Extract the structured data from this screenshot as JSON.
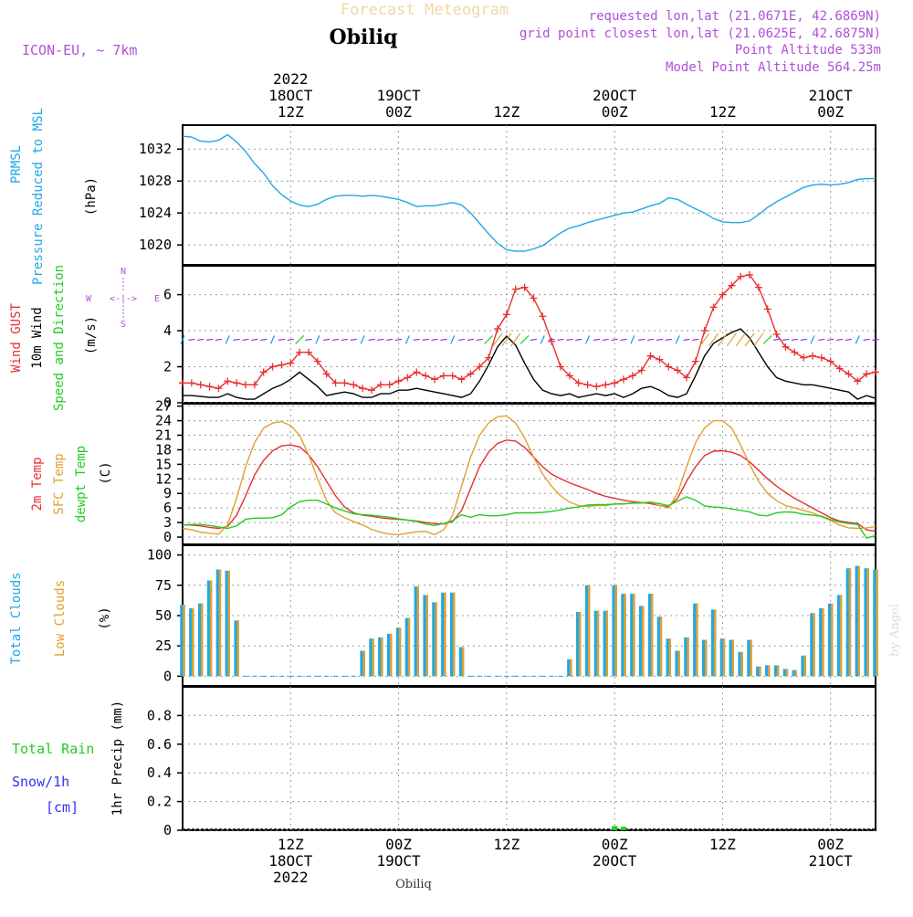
{
  "header": {
    "title_faded": "Forecast Meteogram",
    "location": "Obiliq",
    "model": "ICON-EU, ~ 7km",
    "requested": "requested lon,lat (21.0671E, 42.6869N)",
    "grid_point": "grid point closest lon,lat (21.0625E, 42.6875N)",
    "point_altitude": "Point Altitude 533m",
    "model_altitude": "Model Point Altitude 564.25m",
    "watermark": "by Angel",
    "footer_location": "Obiliq"
  },
  "time_axis": {
    "top_year": "2022",
    "ticks": [
      {
        "h": 12,
        "l1": "12Z",
        "l2": "18OCT",
        "l3": "2022"
      },
      {
        "h": 24,
        "l1": "00Z",
        "l2": "19OCT",
        "l3": ""
      },
      {
        "h": 36,
        "l1": "12Z",
        "l2": "",
        "l3": ""
      },
      {
        "h": 48,
        "l1": "00Z",
        "l2": "20OCT",
        "l3": ""
      },
      {
        "h": 60,
        "l1": "12Z",
        "l2": "",
        "l3": ""
      },
      {
        "h": 72,
        "l1": "00Z",
        "l2": "21OCT",
        "l3": ""
      }
    ],
    "start_hour": 0,
    "end_hour": 77
  },
  "colors": {
    "pressure": "#1ea8e8",
    "gust": "#e83030",
    "wind": "#000000",
    "temp2m": "#e83030",
    "sfc": "#e0a030",
    "dewpt": "#22cc22",
    "total_clouds": "#1ea8e8",
    "low_clouds": "#e0a030",
    "rain": "#22cc22",
    "snow": "#3333ee",
    "purple": "#b050d8",
    "grid": "#999999"
  },
  "chart_data": [
    {
      "type": "line",
      "panel": "pressure",
      "labels": [
        "PRMSL",
        "Pressure Reduced to MSL"
      ],
      "unit": "(hPa)",
      "ylim": [
        1017.5,
        1035
      ],
      "yticks": [
        1020,
        1024,
        1028,
        1032
      ],
      "x": [
        0,
        1,
        2,
        3,
        4,
        5,
        6,
        7,
        8,
        9,
        10,
        11,
        12,
        13,
        14,
        15,
        16,
        17,
        18,
        19,
        20,
        21,
        22,
        23,
        24,
        25,
        26,
        27,
        28,
        29,
        30,
        31,
        32,
        33,
        34,
        35,
        36,
        37,
        38,
        39,
        40,
        41,
        42,
        43,
        44,
        45,
        46,
        47,
        48,
        49,
        50,
        51,
        52,
        53,
        54,
        55,
        56,
        57,
        58,
        59,
        60,
        61,
        62,
        63,
        64,
        65,
        66,
        67,
        68,
        69,
        70,
        71,
        72,
        73,
        74,
        75,
        76,
        77
      ],
      "series": [
        {
          "name": "PRMSL",
          "values": [
            1033.6,
            1033.5,
            1033,
            1032.9,
            1033.1,
            1033.8,
            1032.9,
            1031.7,
            1030.2,
            1029,
            1027.4,
            1026.3,
            1025.5,
            1025,
            1024.8,
            1025.1,
            1025.7,
            1026.1,
            1026.2,
            1026.2,
            1026.1,
            1026.2,
            1026.1,
            1025.9,
            1025.7,
            1025.3,
            1024.8,
            1024.9,
            1024.9,
            1025.1,
            1025.3,
            1025,
            1024,
            1022.7,
            1021.4,
            1020.2,
            1019.4,
            1019.2,
            1019.2,
            1019.5,
            1019.9,
            1020.7,
            1021.5,
            1022.1,
            1022.4,
            1022.8,
            1023.1,
            1023.4,
            1023.7,
            1024,
            1024.1,
            1024.5,
            1024.9,
            1025.2,
            1025.9,
            1025.7,
            1025.1,
            1024.5,
            1024,
            1023.3,
            1022.9,
            1022.8,
            1022.8,
            1023,
            1023.8,
            1024.7,
            1025.4,
            1026,
            1026.6,
            1027.2,
            1027.5,
            1027.6,
            1027.5,
            1027.6,
            1027.8,
            1028.2,
            1028.3,
            1028.3
          ]
        }
      ]
    },
    {
      "type": "line",
      "panel": "wind",
      "labels": [
        "Wind GUST",
        "10m Wind",
        "Speed and Direction"
      ],
      "unit": "(m/s)",
      "ylim": [
        0,
        7.6
      ],
      "yticks": [
        0,
        2,
        4,
        6
      ],
      "compass": {
        "n": "N",
        "s": "S",
        "w": "W",
        "e": "E",
        "line": "<-|->"
      },
      "x": [
        0,
        1,
        2,
        3,
        4,
        5,
        6,
        7,
        8,
        9,
        10,
        11,
        12,
        13,
        14,
        15,
        16,
        17,
        18,
        19,
        20,
        21,
        22,
        23,
        24,
        25,
        26,
        27,
        28,
        29,
        30,
        31,
        32,
        33,
        34,
        35,
        36,
        37,
        38,
        39,
        40,
        41,
        42,
        43,
        44,
        45,
        46,
        47,
        48,
        49,
        50,
        51,
        52,
        53,
        54,
        55,
        56,
        57,
        58,
        59,
        60,
        61,
        62,
        63,
        64,
        65,
        66,
        67,
        68,
        69,
        70,
        71,
        72,
        73,
        74,
        75,
        76,
        77
      ],
      "series": [
        {
          "name": "Wind GUST",
          "values": [
            1.1,
            1.1,
            1,
            0.9,
            0.8,
            1.2,
            1.1,
            1.0,
            1.0,
            1.7,
            2.0,
            2.1,
            2.2,
            2.8,
            2.8,
            2.3,
            1.6,
            1.1,
            1.1,
            1.0,
            0.8,
            0.7,
            1.0,
            1.0,
            1.2,
            1.4,
            1.7,
            1.5,
            1.3,
            1.5,
            1.5,
            1.3,
            1.6,
            2.0,
            2.5,
            4.1,
            4.9,
            6.3,
            6.4,
            5.8,
            4.8,
            3.4,
            2.0,
            1.5,
            1.1,
            1.0,
            0.9,
            1.0,
            1.1,
            1.3,
            1.5,
            1.8,
            2.6,
            2.4,
            2.0,
            1.8,
            1.4,
            2.3,
            4.0,
            5.3,
            6.0,
            6.5,
            7.0,
            7.1,
            6.4,
            5.2,
            3.8,
            3.1,
            2.8,
            2.5,
            2.6,
            2.5,
            2.3,
            1.9,
            1.6,
            1.2,
            1.6,
            1.7
          ]
        },
        {
          "name": "10m Wind",
          "values": [
            0.4,
            0.4,
            0.35,
            0.3,
            0.3,
            0.5,
            0.3,
            0.2,
            0.2,
            0.5,
            0.8,
            1.0,
            1.3,
            1.7,
            1.3,
            0.9,
            0.4,
            0.5,
            0.6,
            0.5,
            0.3,
            0.3,
            0.5,
            0.5,
            0.7,
            0.7,
            0.8,
            0.7,
            0.6,
            0.5,
            0.4,
            0.3,
            0.5,
            1.2,
            2.1,
            3.1,
            3.7,
            3.2,
            2.2,
            1.3,
            0.7,
            0.5,
            0.4,
            0.5,
            0.3,
            0.4,
            0.5,
            0.4,
            0.5,
            0.3,
            0.5,
            0.8,
            0.9,
            0.7,
            0.4,
            0.3,
            0.5,
            1.5,
            2.6,
            3.3,
            3.6,
            3.9,
            4.1,
            3.6,
            2.8,
            2.0,
            1.4,
            1.2,
            1.1,
            1.0,
            1.0,
            0.9,
            0.8,
            0.7,
            0.6,
            0.2,
            0.4,
            0.25
          ]
        }
      ]
    },
    {
      "type": "line",
      "panel": "temperature",
      "labels": [
        "2m Temp",
        "SFC Temp",
        "dewpt Temp"
      ],
      "unit": "(C)",
      "ylim": [
        -1.5,
        27.5
      ],
      "yticks": [
        0,
        3,
        6,
        9,
        12,
        15,
        18,
        21,
        24,
        27
      ],
      "x": [
        0,
        1,
        2,
        3,
        4,
        5,
        6,
        7,
        8,
        9,
        10,
        11,
        12,
        13,
        14,
        15,
        16,
        17,
        18,
        19,
        20,
        21,
        22,
        23,
        24,
        25,
        26,
        27,
        28,
        29,
        30,
        31,
        32,
        33,
        34,
        35,
        36,
        37,
        38,
        39,
        40,
        41,
        42,
        43,
        44,
        45,
        46,
        47,
        48,
        49,
        50,
        51,
        52,
        53,
        54,
        55,
        56,
        57,
        58,
        59,
        60,
        61,
        62,
        63,
        64,
        65,
        66,
        67,
        68,
        69,
        70,
        71,
        72,
        73,
        74,
        75,
        76,
        77
      ],
      "series": [
        {
          "name": "2m Temp",
          "values": [
            2.5,
            2.5,
            2.3,
            2.0,
            1.8,
            2.2,
            4.5,
            8.5,
            12.8,
            15.8,
            17.8,
            18.8,
            19.0,
            18.6,
            17.0,
            14.5,
            11.5,
            8.5,
            6.2,
            5.0,
            4.5,
            4.3,
            4.0,
            3.8,
            3.7,
            3.5,
            3.3,
            3.0,
            2.8,
            2.7,
            3.2,
            5.5,
            10.0,
            14.5,
            17.5,
            19.3,
            20.0,
            19.8,
            18.5,
            16.5,
            14.5,
            13.0,
            12.0,
            11.2,
            10.5,
            9.8,
            9.0,
            8.4,
            8.0,
            7.6,
            7.3,
            7.1,
            6.9,
            6.5,
            6.2,
            8.0,
            11.5,
            14.5,
            16.8,
            17.7,
            17.8,
            17.5,
            16.8,
            15.5,
            13.8,
            12.0,
            10.5,
            9.2,
            8.0,
            7.0,
            6.0,
            5.0,
            4.0,
            3.3,
            3.0,
            2.8,
            1.5,
            1.2
          ]
        },
        {
          "name": "SFC Temp",
          "values": [
            1.8,
            1.5,
            1.0,
            0.8,
            0.6,
            2.5,
            8.0,
            14.5,
            19.5,
            22.5,
            23.5,
            23.8,
            23.0,
            21.0,
            17.0,
            12.0,
            7.5,
            5.0,
            4.0,
            3.2,
            2.5,
            1.6,
            1.0,
            0.6,
            0.5,
            0.8,
            1.1,
            1.2,
            0.5,
            1.5,
            4.5,
            10.5,
            16.5,
            21.0,
            23.5,
            24.8,
            25.0,
            23.5,
            20.5,
            16.5,
            13.0,
            10.5,
            8.5,
            7.2,
            6.5,
            6.3,
            6.5,
            6.5,
            6.8,
            6.8,
            7.0,
            7.0,
            7.2,
            6.5,
            6.0,
            9.0,
            14.5,
            19.5,
            22.5,
            24.0,
            24.0,
            22.5,
            19.0,
            15.0,
            11.5,
            9.0,
            7.5,
            6.5,
            6.0,
            5.5,
            5.0,
            4.2,
            3.4,
            2.5,
            1.9,
            1.8,
            1.9,
            2.2
          ]
        },
        {
          "name": "dewpt Temp",
          "values": [
            2.5,
            2.6,
            2.6,
            2.4,
            2.1,
            1.8,
            2.3,
            3.7,
            3.9,
            3.9,
            4.0,
            4.6,
            6.2,
            7.3,
            7.6,
            7.6,
            6.8,
            6.0,
            5.4,
            4.8,
            4.6,
            4.5,
            4.3,
            4.1,
            3.8,
            3.5,
            3.2,
            2.7,
            2.4,
            2.8,
            3.4,
            4.6,
            4.1,
            4.6,
            4.4,
            4.4,
            4.6,
            5.0,
            5.0,
            5.0,
            5.1,
            5.3,
            5.6,
            6.0,
            6.2,
            6.6,
            6.7,
            6.7,
            6.8,
            6.9,
            7.0,
            7.1,
            7.2,
            6.9,
            6.5,
            7.4,
            8.3,
            7.6,
            6.4,
            6.2,
            6.1,
            5.8,
            5.5,
            5.2,
            4.5,
            4.4,
            5.0,
            5.2,
            5.1,
            4.7,
            4.5,
            4.3,
            3.6,
            3.1,
            2.8,
            2.6,
            -0.2,
            0.3
          ]
        }
      ]
    },
    {
      "type": "bar",
      "panel": "clouds",
      "labels": [
        "Total Clouds",
        "Low Clouds"
      ],
      "unit": "(%)",
      "ylim": [
        -8,
        108
      ],
      "yticks": [
        0,
        25,
        50,
        75,
        100
      ],
      "x": [
        0,
        1,
        2,
        3,
        4,
        5,
        6,
        7,
        8,
        9,
        10,
        11,
        12,
        13,
        14,
        15,
        16,
        17,
        18,
        19,
        20,
        21,
        22,
        23,
        24,
        25,
        26,
        27,
        28,
        29,
        30,
        31,
        32,
        33,
        34,
        35,
        36,
        37,
        38,
        39,
        40,
        41,
        42,
        43,
        44,
        45,
        46,
        47,
        48,
        49,
        50,
        51,
        52,
        53,
        54,
        55,
        56,
        57,
        58,
        59,
        60,
        61,
        62,
        63,
        64,
        65,
        66,
        67,
        68,
        69,
        70,
        71,
        72,
        73,
        74,
        75,
        76,
        77
      ],
      "series": [
        {
          "name": "Total Clouds",
          "values": [
            59,
            56,
            60,
            79,
            88,
            87,
            46,
            0,
            0,
            0,
            0,
            0,
            0,
            0,
            0,
            0,
            0,
            0,
            0,
            0,
            21,
            31,
            32,
            35,
            40,
            48,
            74,
            67,
            61,
            69,
            69,
            24,
            0,
            0,
            0,
            0,
            0,
            0,
            0,
            0,
            0,
            0,
            0,
            14,
            53,
            75,
            54,
            54,
            75,
            68,
            68,
            58,
            68,
            49,
            31,
            21,
            32,
            60,
            30,
            55,
            31,
            30,
            20,
            30,
            8,
            9,
            9,
            6,
            5,
            17,
            52,
            56,
            60,
            67,
            89,
            91,
            89,
            88
          ]
        },
        {
          "name": "Low Clouds",
          "values": [
            59,
            56,
            60,
            79,
            88,
            87,
            46,
            0,
            0,
            0,
            0,
            0,
            0,
            0,
            0,
            0,
            0,
            0,
            0,
            0,
            21,
            31,
            32,
            35,
            40,
            48,
            74,
            67,
            61,
            69,
            69,
            24,
            0,
            0,
            0,
            0,
            0,
            0,
            0,
            0,
            0,
            0,
            0,
            14,
            53,
            75,
            54,
            54,
            75,
            68,
            68,
            58,
            68,
            49,
            31,
            21,
            32,
            60,
            30,
            55,
            31,
            30,
            20,
            30,
            8,
            9,
            9,
            6,
            5,
            17,
            52,
            56,
            60,
            67,
            89,
            91,
            89,
            88
          ]
        }
      ]
    },
    {
      "type": "bar",
      "panel": "precip",
      "labels": [
        "Total Rain",
        "Snow/1h",
        "[cm]"
      ],
      "unit": "1hr Precip (mm)",
      "ylim": [
        0,
        1
      ],
      "yticks": [
        0,
        0.2,
        0.4,
        0.6,
        0.8
      ],
      "x": [
        48,
        49
      ],
      "series": [
        {
          "name": "Total Rain",
          "values": [
            0.01,
            0.005
          ]
        },
        {
          "name": "Snow/1h",
          "values": [
            0,
            0
          ]
        }
      ]
    }
  ]
}
